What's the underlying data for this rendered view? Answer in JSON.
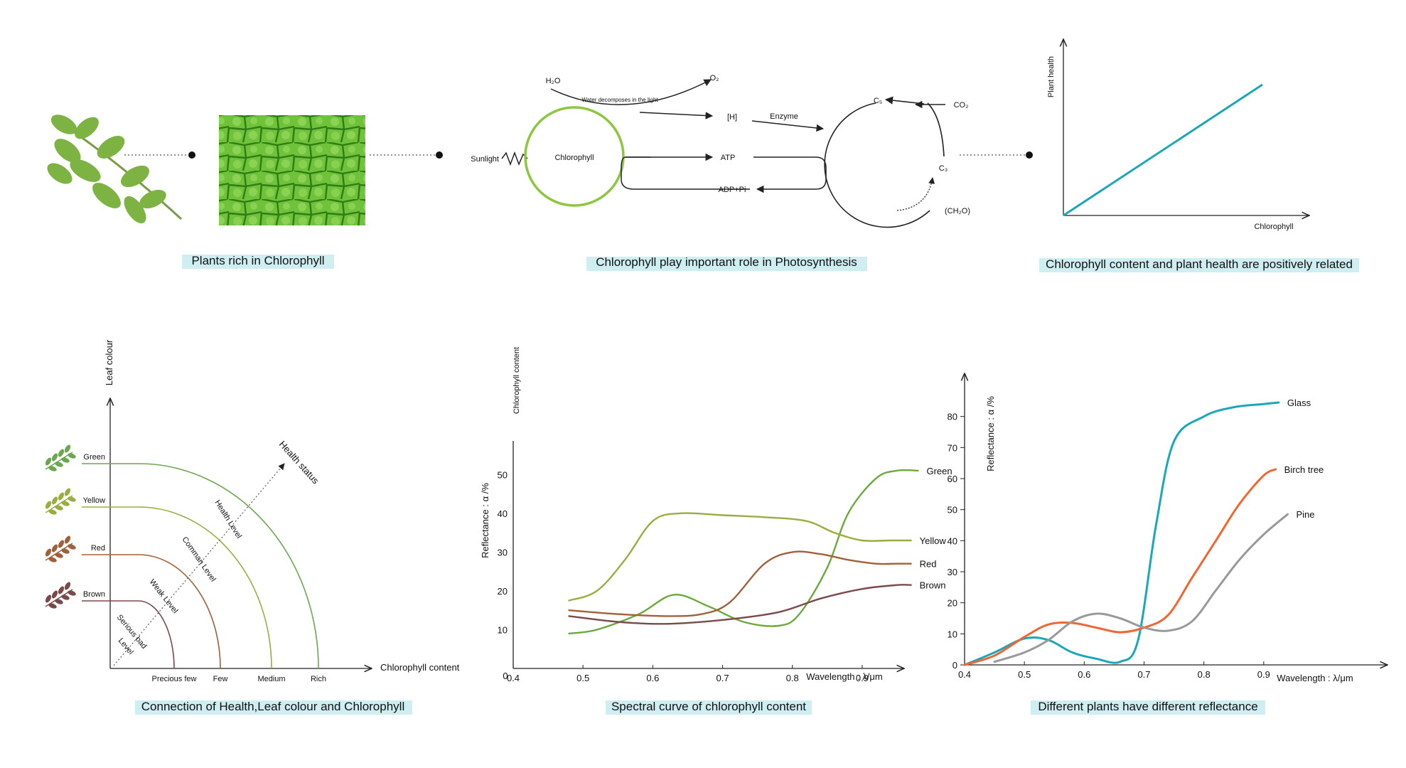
{
  "captions": {
    "p1": "Plants rich in Chlorophyll",
    "p2": "Chlorophyll play important role in Photosynthesis",
    "p3": "Chlorophyll content and plant health are positively related",
    "p4": "Connection of Health,Leaf colour and Chlorophyll",
    "p5": "Spectral curve of chlorophyll content",
    "p6": "Different plants have different reflectance"
  },
  "caption_highlight": "#cfeef2",
  "photosynthesis": {
    "h2o": "H₂O",
    "o2": "O₂",
    "water_note": "Water decomposes in the light",
    "h": "[H]",
    "enzyme": "Enzyme",
    "sunlight": "Sunlight",
    "chlorophyll": "Chlorophyll",
    "atp": "ATP",
    "adp": "ADP+Pi",
    "c5": "C₅",
    "co2": "CO₂",
    "c3": "C₃",
    "ch2o": "(CH₂O)",
    "circle_color": "#8dc63f"
  },
  "health_chart": {
    "ylabel": "Plant health",
    "xlabel": "Chlorophyll",
    "line_color": "#1aa7b8"
  },
  "connection_chart": {
    "ylabel": "Leaf colour",
    "xlabel": "Chlorophyll content",
    "diag_label": "Health status",
    "colors": [
      "Green",
      "Yellow",
      "Red",
      "Brown"
    ],
    "x_ticks": [
      "Precious few",
      "Few",
      "Medium",
      "Rich"
    ],
    "levels": [
      "Health Level",
      "Comman Level",
      "Weak Level",
      "Serious bad",
      "Level"
    ],
    "arc_colors": [
      "#6aa84f",
      "#9aae3f",
      "#a0603a",
      "#7a4a4a"
    ]
  },
  "chart_data": [
    {
      "type": "line",
      "title": "Spectral curve of chlorophyll content",
      "ylabel": "Reflectance :  α /%",
      "ylabel2": "Chlorophyll content",
      "xlabel": "Wavelength :  λ/μm",
      "x_ticks": [
        "0.4",
        "0.5",
        "0.6",
        "0.7",
        "0.8",
        "0.9"
      ],
      "y_ticks": [
        "10",
        "20",
        "30",
        "40",
        "50"
      ],
      "origin_label": "0",
      "xlim": [
        0.4,
        0.95
      ],
      "ylim": [
        0,
        55
      ],
      "series": [
        {
          "name": "Green",
          "color": "#6aaa3a",
          "x": [
            0.48,
            0.52,
            0.58,
            0.63,
            0.68,
            0.73,
            0.78,
            0.81,
            0.85,
            0.88,
            0.92,
            0.95,
            0.98
          ],
          "y": [
            9,
            10,
            14,
            19,
            16,
            12,
            11,
            14,
            26,
            40,
            49,
            51,
            51
          ]
        },
        {
          "name": "Yellow",
          "color": "#9aae3f",
          "x": [
            0.48,
            0.52,
            0.56,
            0.6,
            0.64,
            0.7,
            0.76,
            0.82,
            0.86,
            0.9,
            0.94,
            0.97
          ],
          "y": [
            17.5,
            20,
            28,
            38,
            40,
            39.5,
            39,
            38,
            35,
            33,
            33,
            33
          ]
        },
        {
          "name": "Red",
          "color": "#a0603a",
          "x": [
            0.48,
            0.55,
            0.62,
            0.67,
            0.71,
            0.76,
            0.8,
            0.84,
            0.88,
            0.92,
            0.95,
            0.97
          ],
          "y": [
            15,
            14,
            13.5,
            14,
            17,
            27,
            30,
            29.5,
            28,
            27,
            27,
            27
          ]
        },
        {
          "name": "Brown",
          "color": "#7a4a4a",
          "x": [
            0.48,
            0.55,
            0.62,
            0.7,
            0.78,
            0.84,
            0.9,
            0.95,
            0.97
          ],
          "y": [
            13.5,
            12,
            11.5,
            12.5,
            14.5,
            18,
            20.5,
            21.5,
            21.5
          ]
        }
      ]
    },
    {
      "type": "line",
      "title": "Different plants have different reflectance",
      "ylabel": "Reflectance :   α /%",
      "xlabel": "Wavelength :  λ/μm",
      "x_ticks": [
        "0.4",
        "0.5",
        "0.6",
        "0.7",
        "0.8",
        "0.9"
      ],
      "y_ticks": [
        "0",
        "10",
        "20",
        "30",
        "40",
        "50",
        "60",
        "70",
        "80"
      ],
      "xlim": [
        0.4,
        1.0
      ],
      "ylim": [
        0,
        90
      ],
      "series": [
        {
          "name": "Glass",
          "color": "#1aa7b8",
          "x": [
            0.4,
            0.45,
            0.5,
            0.54,
            0.58,
            0.62,
            0.66,
            0.69,
            0.72,
            0.75,
            0.8,
            0.85,
            0.9,
            0.925
          ],
          "y": [
            0,
            4,
            8.5,
            8,
            4,
            2,
            1,
            8,
            45,
            72,
            80,
            83,
            84,
            84.5
          ]
        },
        {
          "name": "Birch tree",
          "color": "#f26530",
          "x": [
            0.4,
            0.45,
            0.5,
            0.54,
            0.58,
            0.62,
            0.66,
            0.7,
            0.74,
            0.78,
            0.82,
            0.86,
            0.9,
            0.92
          ],
          "y": [
            0,
            3,
            9,
            13,
            13.5,
            12,
            10.5,
            12,
            16,
            28,
            40,
            52,
            61,
            63
          ]
        },
        {
          "name": "Pine",
          "color": "#999999",
          "x": [
            0.45,
            0.5,
            0.54,
            0.58,
            0.62,
            0.66,
            0.7,
            0.74,
            0.78,
            0.82,
            0.86,
            0.9,
            0.94
          ],
          "y": [
            1,
            4,
            8,
            14,
            16.5,
            15,
            12,
            11,
            14,
            24,
            34,
            42,
            48.5
          ]
        }
      ]
    }
  ]
}
